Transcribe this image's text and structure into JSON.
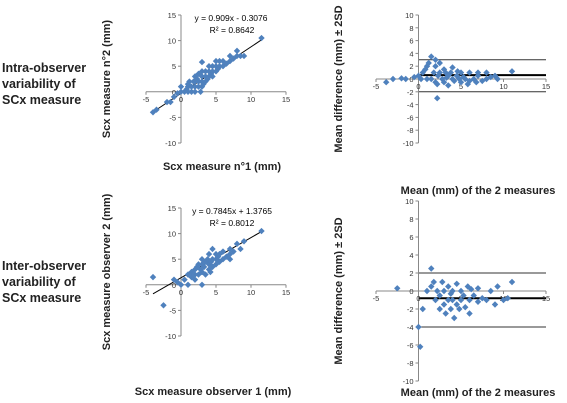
{
  "row_labels": [
    {
      "lines": [
        "Intra-observer",
        "variability  of",
        "SCx measure"
      ]
    },
    {
      "lines": [
        "Inter-observer",
        "variability  of",
        "SCx measure"
      ]
    }
  ],
  "chart_data": [
    {
      "type": "scatter",
      "xlabel": "Scx measure n°1 (mm)",
      "ylabel": "Scx measure n°2 (mm)",
      "xlim": [
        -5,
        15
      ],
      "ylim": [
        -10,
        15
      ],
      "xticks": [
        -5,
        0,
        5,
        10,
        15
      ],
      "yticks": [
        -10,
        -5,
        0,
        5,
        10,
        15
      ],
      "marker_color": "#4f81bd",
      "trendline": {
        "slope": 0.909,
        "intercept": -0.3076,
        "x_range": [
          -4,
          11.5
        ]
      },
      "equation": "y = 0.909x - 0.3076",
      "r_squared": "R² = 0.8642",
      "points": [
        [
          -4,
          -4
        ],
        [
          -3.5,
          -3.5
        ],
        [
          -2,
          -2
        ],
        [
          -1.5,
          -2
        ],
        [
          -1,
          -1
        ],
        [
          -0.5,
          -0.3
        ],
        [
          0,
          0
        ],
        [
          0,
          1
        ],
        [
          0.5,
          0
        ],
        [
          0.8,
          0.5
        ],
        [
          1,
          0
        ],
        [
          1,
          1
        ],
        [
          1,
          1.5
        ],
        [
          1.2,
          2
        ],
        [
          1.5,
          0
        ],
        [
          1.5,
          1
        ],
        [
          1.8,
          2
        ],
        [
          2,
          0
        ],
        [
          2,
          1
        ],
        [
          2,
          2
        ],
        [
          2,
          3
        ],
        [
          2.3,
          2.5
        ],
        [
          2.5,
          1
        ],
        [
          2.5,
          2
        ],
        [
          2.5,
          3.5
        ],
        [
          2.8,
          0
        ],
        [
          3,
          1
        ],
        [
          3,
          2
        ],
        [
          3,
          3
        ],
        [
          3,
          4
        ],
        [
          3,
          5.8
        ],
        [
          3.2,
          1.5
        ],
        [
          3.5,
          2
        ],
        [
          3.5,
          3
        ],
        [
          3.5,
          4
        ],
        [
          3.8,
          2.5
        ],
        [
          4,
          3
        ],
        [
          4,
          4
        ],
        [
          4,
          5
        ],
        [
          4.3,
          3.5
        ],
        [
          4.5,
          3
        ],
        [
          4.5,
          4
        ],
        [
          4.5,
          5
        ],
        [
          5,
          4
        ],
        [
          5,
          5
        ],
        [
          5,
          6
        ],
        [
          5.3,
          4.5
        ],
        [
          5.5,
          5
        ],
        [
          5.5,
          6
        ],
        [
          6,
          5
        ],
        [
          6,
          6
        ],
        [
          6.5,
          5.5
        ],
        [
          7,
          6
        ],
        [
          7,
          7
        ],
        [
          7.5,
          6.5
        ],
        [
          8,
          7
        ],
        [
          8,
          8
        ],
        [
          8.5,
          7
        ],
        [
          9,
          7
        ],
        [
          11.5,
          10.5
        ]
      ]
    },
    {
      "type": "scatter",
      "xlabel": "Mean (mm) of the 2 measures",
      "ylabel": "Mean difference (mm) ± 2SD",
      "xlim": [
        -5,
        15
      ],
      "ylim": [
        -10,
        10
      ],
      "xticks": [
        -5,
        0,
        5,
        10,
        15
      ],
      "yticks": [
        -10,
        -8,
        -6,
        -4,
        -2,
        0,
        2,
        4,
        6,
        8,
        10
      ],
      "marker_color": "#4f81bd",
      "mean_line": 0.6,
      "sd_lines": [
        3,
        -2
      ],
      "points": [
        [
          -3.8,
          -0.5
        ],
        [
          -3,
          0
        ],
        [
          -2,
          0.1
        ],
        [
          -1.5,
          0
        ],
        [
          -0.5,
          0.3
        ],
        [
          0,
          0.5
        ],
        [
          0.3,
          0
        ],
        [
          0.5,
          1
        ],
        [
          0.8,
          1.5
        ],
        [
          1,
          0
        ],
        [
          1,
          2
        ],
        [
          1.2,
          2.5
        ],
        [
          1.5,
          3.5
        ],
        [
          1.5,
          0
        ],
        [
          1.8,
          1
        ],
        [
          2,
          2
        ],
        [
          2,
          3
        ],
        [
          2,
          -0.5
        ],
        [
          2.3,
          0.5
        ],
        [
          2.5,
          1
        ],
        [
          2.5,
          2.5
        ],
        [
          2.8,
          0
        ],
        [
          3,
          1.5
        ],
        [
          3,
          -0.5
        ],
        [
          3.2,
          1
        ],
        [
          3.5,
          0.5
        ],
        [
          3.5,
          -1
        ],
        [
          3.8,
          1
        ],
        [
          4,
          0
        ],
        [
          4,
          1.8
        ],
        [
          4.2,
          -0.3
        ],
        [
          4.5,
          0.5
        ],
        [
          4.8,
          0
        ],
        [
          5,
          1
        ],
        [
          5,
          -0.5
        ],
        [
          5.3,
          0.3
        ],
        [
          5.5,
          0
        ],
        [
          6,
          1
        ],
        [
          6,
          -0.3
        ],
        [
          6.5,
          0
        ],
        [
          7,
          0.5
        ],
        [
          7,
          1
        ],
        [
          7.5,
          -0.3
        ],
        [
          8,
          1
        ],
        [
          8.5,
          0.3
        ],
        [
          9,
          0.5
        ],
        [
          2.2,
          -3
        ],
        [
          2.2,
          -0.8
        ],
        [
          3.3,
          0.2
        ],
        [
          4.6,
          1.2
        ],
        [
          5.8,
          -0.8
        ],
        [
          6.8,
          -0.5
        ],
        [
          8,
          0
        ],
        [
          9.3,
          0
        ],
        [
          11,
          1.2
        ]
      ]
    },
    {
      "type": "scatter",
      "xlabel": "Scx measure observer 1 (mm)",
      "ylabel": "Scx measure observer 2 (mm)",
      "xlim": [
        -5,
        15
      ],
      "ylim": [
        -10,
        15
      ],
      "xticks": [
        -5,
        0,
        5,
        10,
        15
      ],
      "yticks": [
        -10,
        -5,
        0,
        5,
        10,
        15
      ],
      "marker_color": "#4f81bd",
      "trendline": {
        "slope": 0.7845,
        "intercept": 1.3765,
        "x_range": [
          -4,
          11.5
        ]
      },
      "equation": "y = 0.7845x + 1.3765",
      "r_squared": "R² = 0.8012",
      "points": [
        [
          -4,
          1.5
        ],
        [
          -2.5,
          -4
        ],
        [
          -1,
          1
        ],
        [
          -0.5,
          0.5
        ],
        [
          0,
          0
        ],
        [
          0.5,
          1
        ],
        [
          1,
          0
        ],
        [
          1,
          2
        ],
        [
          1.5,
          1.5
        ],
        [
          1.5,
          2.5
        ],
        [
          2,
          1
        ],
        [
          2,
          2
        ],
        [
          2,
          3
        ],
        [
          2.3,
          3.5
        ],
        [
          2.5,
          2
        ],
        [
          2.5,
          4
        ],
        [
          2.8,
          3
        ],
        [
          3,
          2.5
        ],
        [
          3,
          4
        ],
        [
          3,
          5
        ],
        [
          3.3,
          3.5
        ],
        [
          3.5,
          2
        ],
        [
          3.5,
          4.5
        ],
        [
          3.8,
          5
        ],
        [
          4,
          3
        ],
        [
          4,
          4
        ],
        [
          4,
          6
        ],
        [
          4.3,
          4.5
        ],
        [
          4.5,
          3.5
        ],
        [
          4.5,
          5
        ],
        [
          4.5,
          7
        ],
        [
          5,
          4
        ],
        [
          5,
          5
        ],
        [
          5,
          6
        ],
        [
          5.3,
          5.5
        ],
        [
          5.5,
          4.5
        ],
        [
          5.5,
          6
        ],
        [
          6,
          5
        ],
        [
          6,
          6.5
        ],
        [
          6.5,
          5.5
        ],
        [
          7,
          5
        ],
        [
          7,
          6
        ],
        [
          7,
          7
        ],
        [
          7.5,
          6.5
        ],
        [
          8,
          8
        ],
        [
          8.5,
          7
        ],
        [
          9,
          8.5
        ],
        [
          11.5,
          10.5
        ],
        [
          3,
          0
        ],
        [
          4.2,
          2.5
        ]
      ]
    },
    {
      "type": "scatter",
      "xlabel": "Mean (mm) of the 2 measures",
      "ylabel": "Mean difference (mm) ± 2SD",
      "xlim": [
        -5,
        15
      ],
      "ylim": [
        -10,
        10
      ],
      "xticks": [
        -5,
        0,
        5,
        10,
        15
      ],
      "yticks": [
        -10,
        -8,
        -6,
        -4,
        -2,
        0,
        2,
        4,
        6,
        8,
        10
      ],
      "marker_color": "#4f81bd",
      "mean_line": -0.8,
      "sd_lines": [
        2,
        -4
      ],
      "points": [
        [
          -2.5,
          0.3
        ],
        [
          0,
          -4
        ],
        [
          0.2,
          -6.2
        ],
        [
          0.5,
          -2
        ],
        [
          1,
          0
        ],
        [
          1.5,
          2.5
        ],
        [
          1.8,
          1
        ],
        [
          2,
          -1
        ],
        [
          2.2,
          0
        ],
        [
          2.5,
          -2
        ],
        [
          2.5,
          -0.5
        ],
        [
          2.8,
          1
        ],
        [
          3,
          -1.5
        ],
        [
          3,
          0
        ],
        [
          3.2,
          -2.5
        ],
        [
          3.5,
          -1
        ],
        [
          3.5,
          0.5
        ],
        [
          3.8,
          -2
        ],
        [
          4,
          -1
        ],
        [
          4,
          0
        ],
        [
          4.2,
          -3
        ],
        [
          4.5,
          -1.5
        ],
        [
          4.5,
          0.8
        ],
        [
          4.8,
          -2
        ],
        [
          5,
          -1
        ],
        [
          5,
          0
        ],
        [
          5.3,
          -0.5
        ],
        [
          5.5,
          -1.8
        ],
        [
          5.8,
          0.5
        ],
        [
          6,
          -1
        ],
        [
          6,
          -2.5
        ],
        [
          6.5,
          -0.5
        ],
        [
          7,
          -1.2
        ],
        [
          7,
          0.3
        ],
        [
          7.5,
          -0.8
        ],
        [
          8,
          -1
        ],
        [
          8.5,
          0
        ],
        [
          9,
          -1.5
        ],
        [
          9.3,
          0.5
        ],
        [
          10,
          -1
        ],
        [
          10.5,
          -0.8
        ],
        [
          11,
          1
        ],
        [
          1.5,
          0.5
        ],
        [
          3.8,
          -0.3
        ],
        [
          6.2,
          0.2
        ]
      ]
    }
  ]
}
